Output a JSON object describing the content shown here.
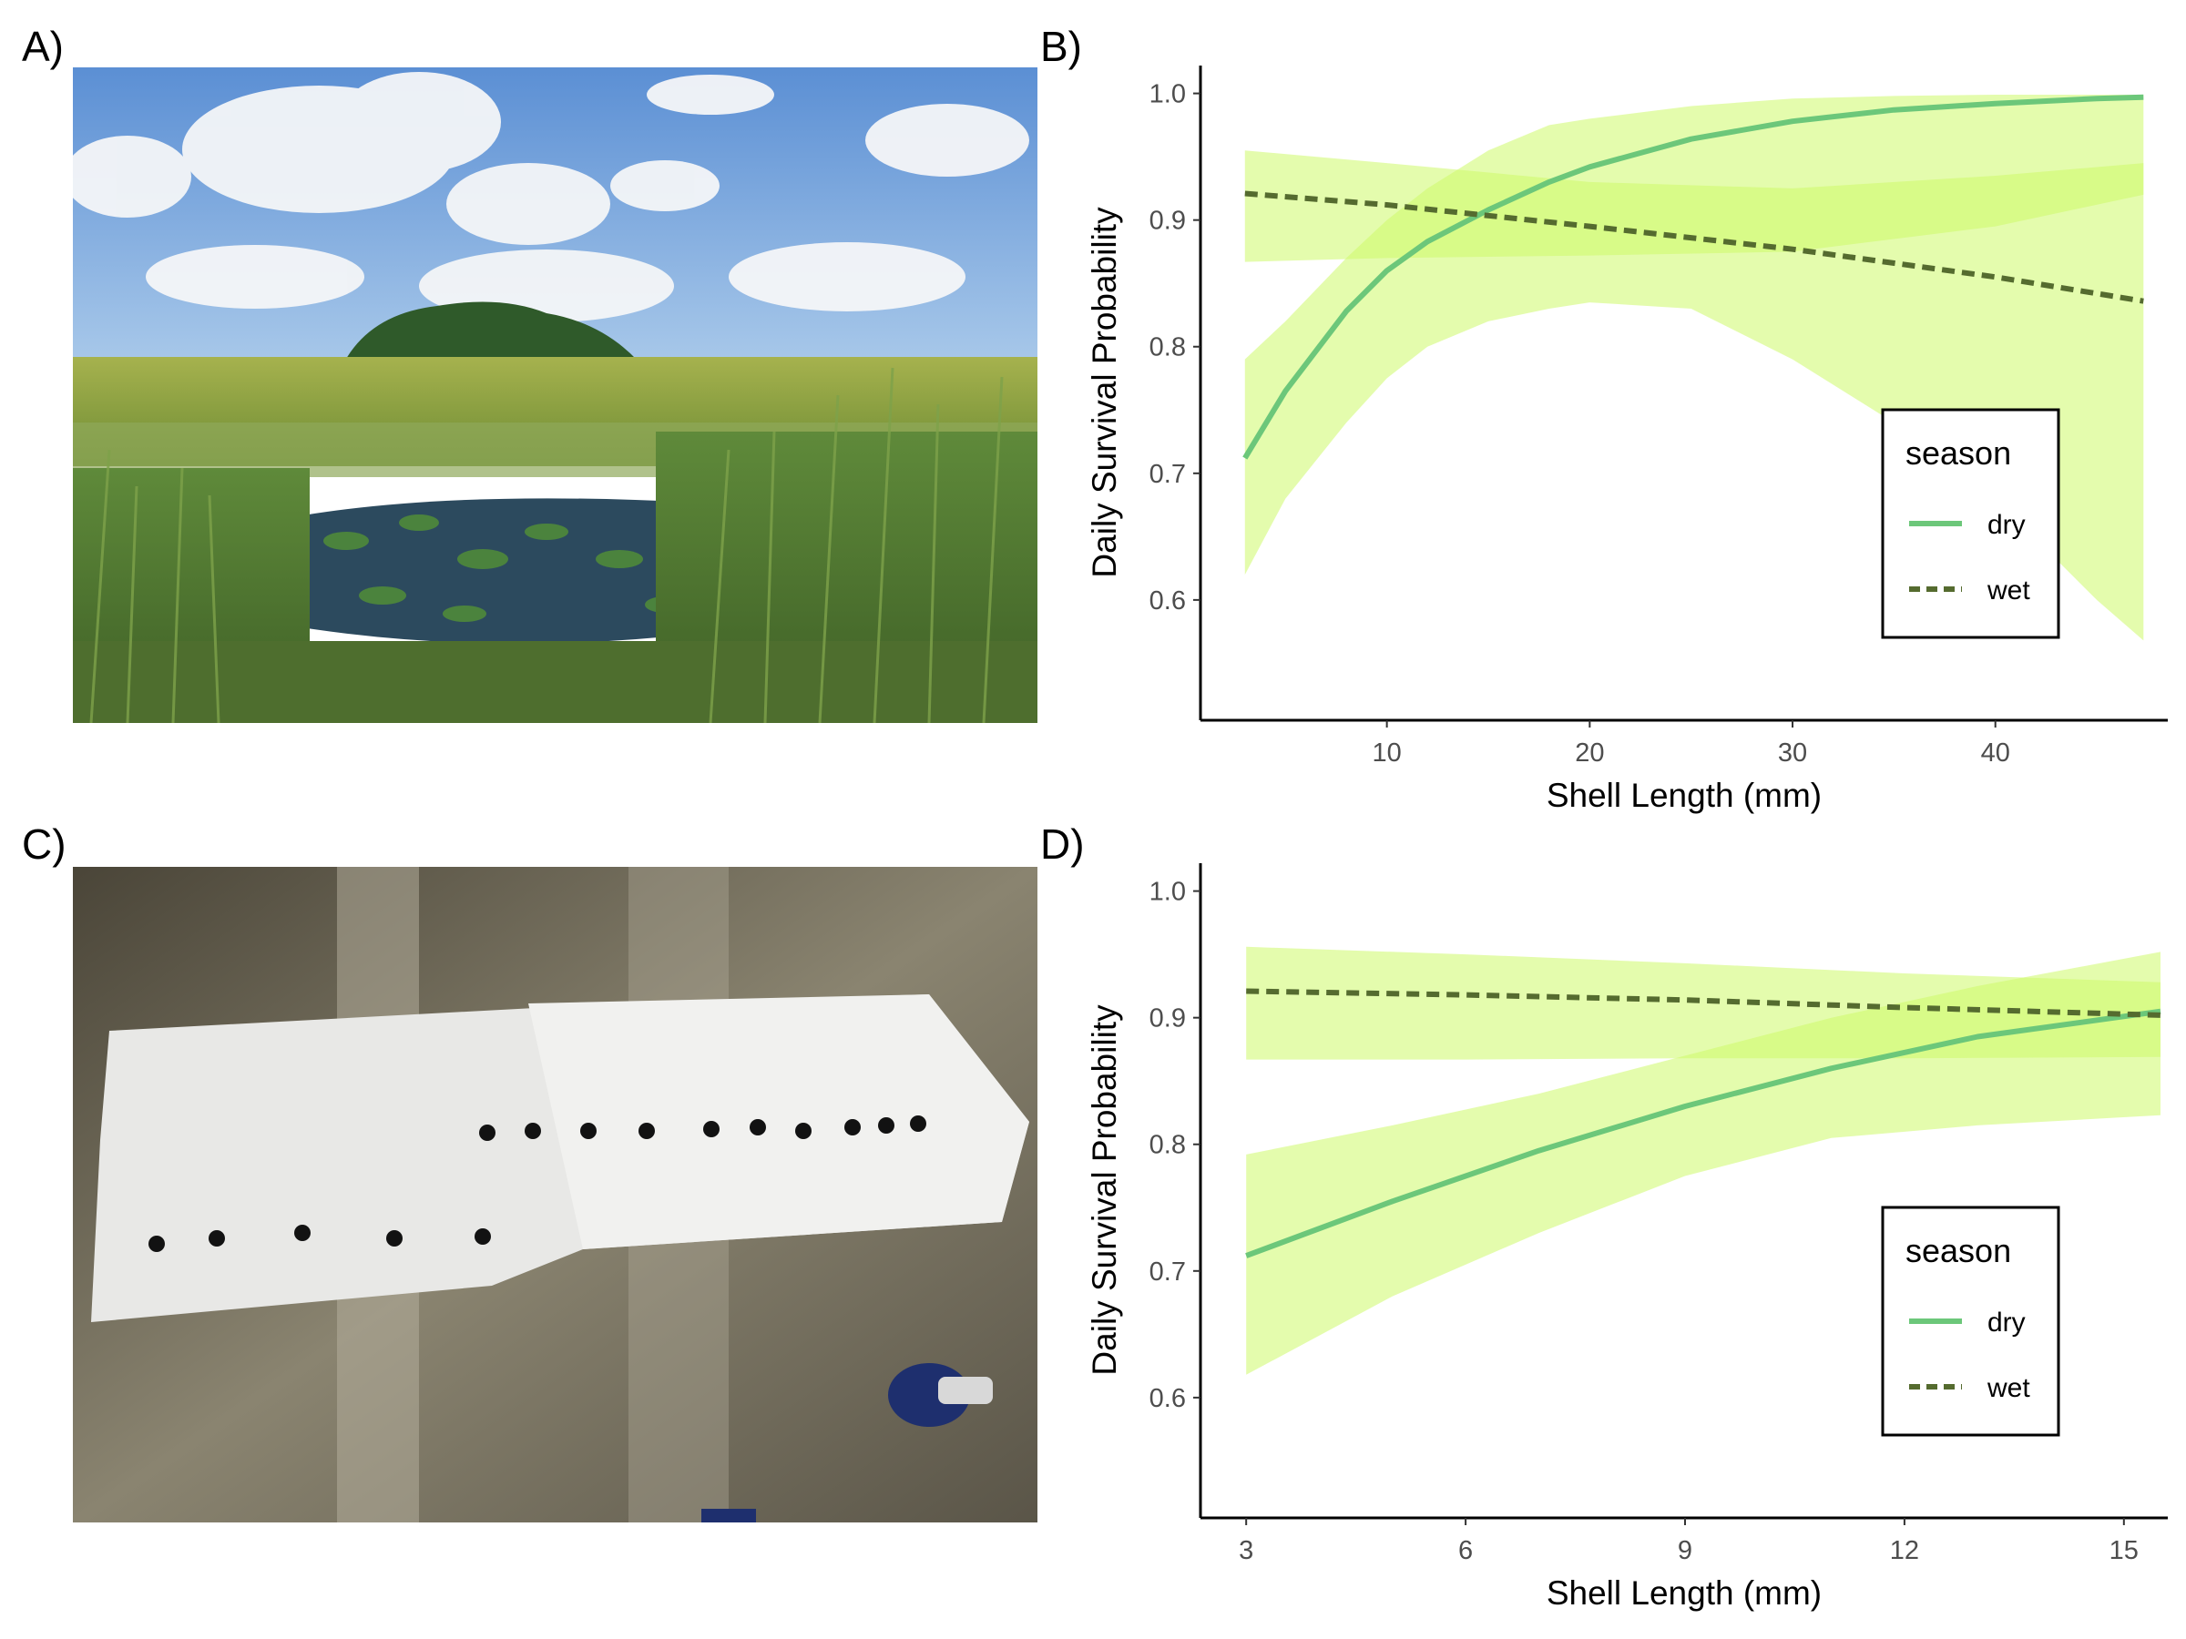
{
  "panels": {
    "a_label": "A)",
    "b_label": "B)",
    "c_label": "C)",
    "d_label": "D)"
  },
  "colors": {
    "dry_line": "#6cc77a",
    "wet_line": "#556b2f",
    "ribbon": "#cdfa6a"
  },
  "chart_data": [
    {
      "panel": "B)",
      "type": "line",
      "xlabel": "Shell Length (mm)",
      "ylabel": "Daily Survival Probability",
      "xlim": [
        0.9,
        48.5
      ],
      "ylim": [
        0.505,
        1.022
      ],
      "xticks": [
        10,
        20,
        30,
        40
      ],
      "yticks": [
        0.6,
        0.7,
        0.8,
        0.9,
        1.0
      ],
      "ytick_labels": [
        "0.6",
        "0.7",
        "0.8",
        "0.9",
        "1.0"
      ],
      "legend": {
        "title": "season",
        "position": "bottom-right",
        "entries": [
          "dry",
          "wet"
        ]
      },
      "series": [
        {
          "name": "dry",
          "style": "solid",
          "x": [
            3,
            5,
            8,
            10,
            12,
            15,
            18,
            20,
            25,
            30,
            35,
            40,
            45,
            47.3
          ],
          "y": [
            0.712,
            0.765,
            0.828,
            0.86,
            0.883,
            0.908,
            0.93,
            0.942,
            0.964,
            0.978,
            0.987,
            0.992,
            0.996,
            0.997
          ],
          "lower": [
            0.62,
            0.68,
            0.74,
            0.775,
            0.8,
            0.82,
            0.83,
            0.835,
            0.83,
            0.79,
            0.74,
            0.68,
            0.6,
            0.568
          ],
          "upper": [
            0.79,
            0.82,
            0.87,
            0.9,
            0.925,
            0.955,
            0.975,
            0.98,
            0.99,
            0.996,
            0.998,
            0.999,
            0.999,
            0.999
          ]
        },
        {
          "name": "wet",
          "style": "dashed",
          "x": [
            3,
            10,
            20,
            30,
            40,
            47.3
          ],
          "y": [
            0.921,
            0.912,
            0.895,
            0.877,
            0.855,
            0.836
          ],
          "lower": [
            0.867,
            0.87,
            0.872,
            0.875,
            0.895,
            0.92
          ],
          "upper": [
            0.955,
            0.945,
            0.93,
            0.925,
            0.935,
            0.945
          ]
        }
      ]
    },
    {
      "panel": "D)",
      "type": "line",
      "xlabel": "Shell Length (mm)",
      "ylabel": "Daily Survival Probability",
      "xlim": [
        2.4,
        15.6
      ],
      "ylim": [
        0.505,
        1.022
      ],
      "xticks": [
        3,
        6,
        9,
        12,
        15
      ],
      "yticks": [
        0.6,
        0.7,
        0.8,
        0.9,
        1.0
      ],
      "ytick_labels": [
        "0.6",
        "0.7",
        "0.8",
        "0.9",
        "1.0"
      ],
      "legend": {
        "title": "season",
        "position": "bottom-right",
        "entries": [
          "dry",
          "wet"
        ]
      },
      "series": [
        {
          "name": "dry",
          "style": "solid",
          "x": [
            3,
            5,
            7,
            9,
            11,
            13,
            15.5
          ],
          "y": [
            0.712,
            0.755,
            0.795,
            0.83,
            0.86,
            0.885,
            0.905
          ],
          "lower": [
            0.618,
            0.68,
            0.73,
            0.775,
            0.805,
            0.815,
            0.823
          ],
          "upper": [
            0.792,
            0.815,
            0.84,
            0.87,
            0.9,
            0.925,
            0.952
          ]
        },
        {
          "name": "wet",
          "style": "dashed",
          "x": [
            3,
            6,
            9,
            12,
            15.5
          ],
          "y": [
            0.921,
            0.918,
            0.914,
            0.908,
            0.902
          ],
          "lower": [
            0.867,
            0.867,
            0.868,
            0.868,
            0.869
          ],
          "upper": [
            0.956,
            0.95,
            0.943,
            0.935,
            0.928
          ]
        }
      ]
    }
  ]
}
